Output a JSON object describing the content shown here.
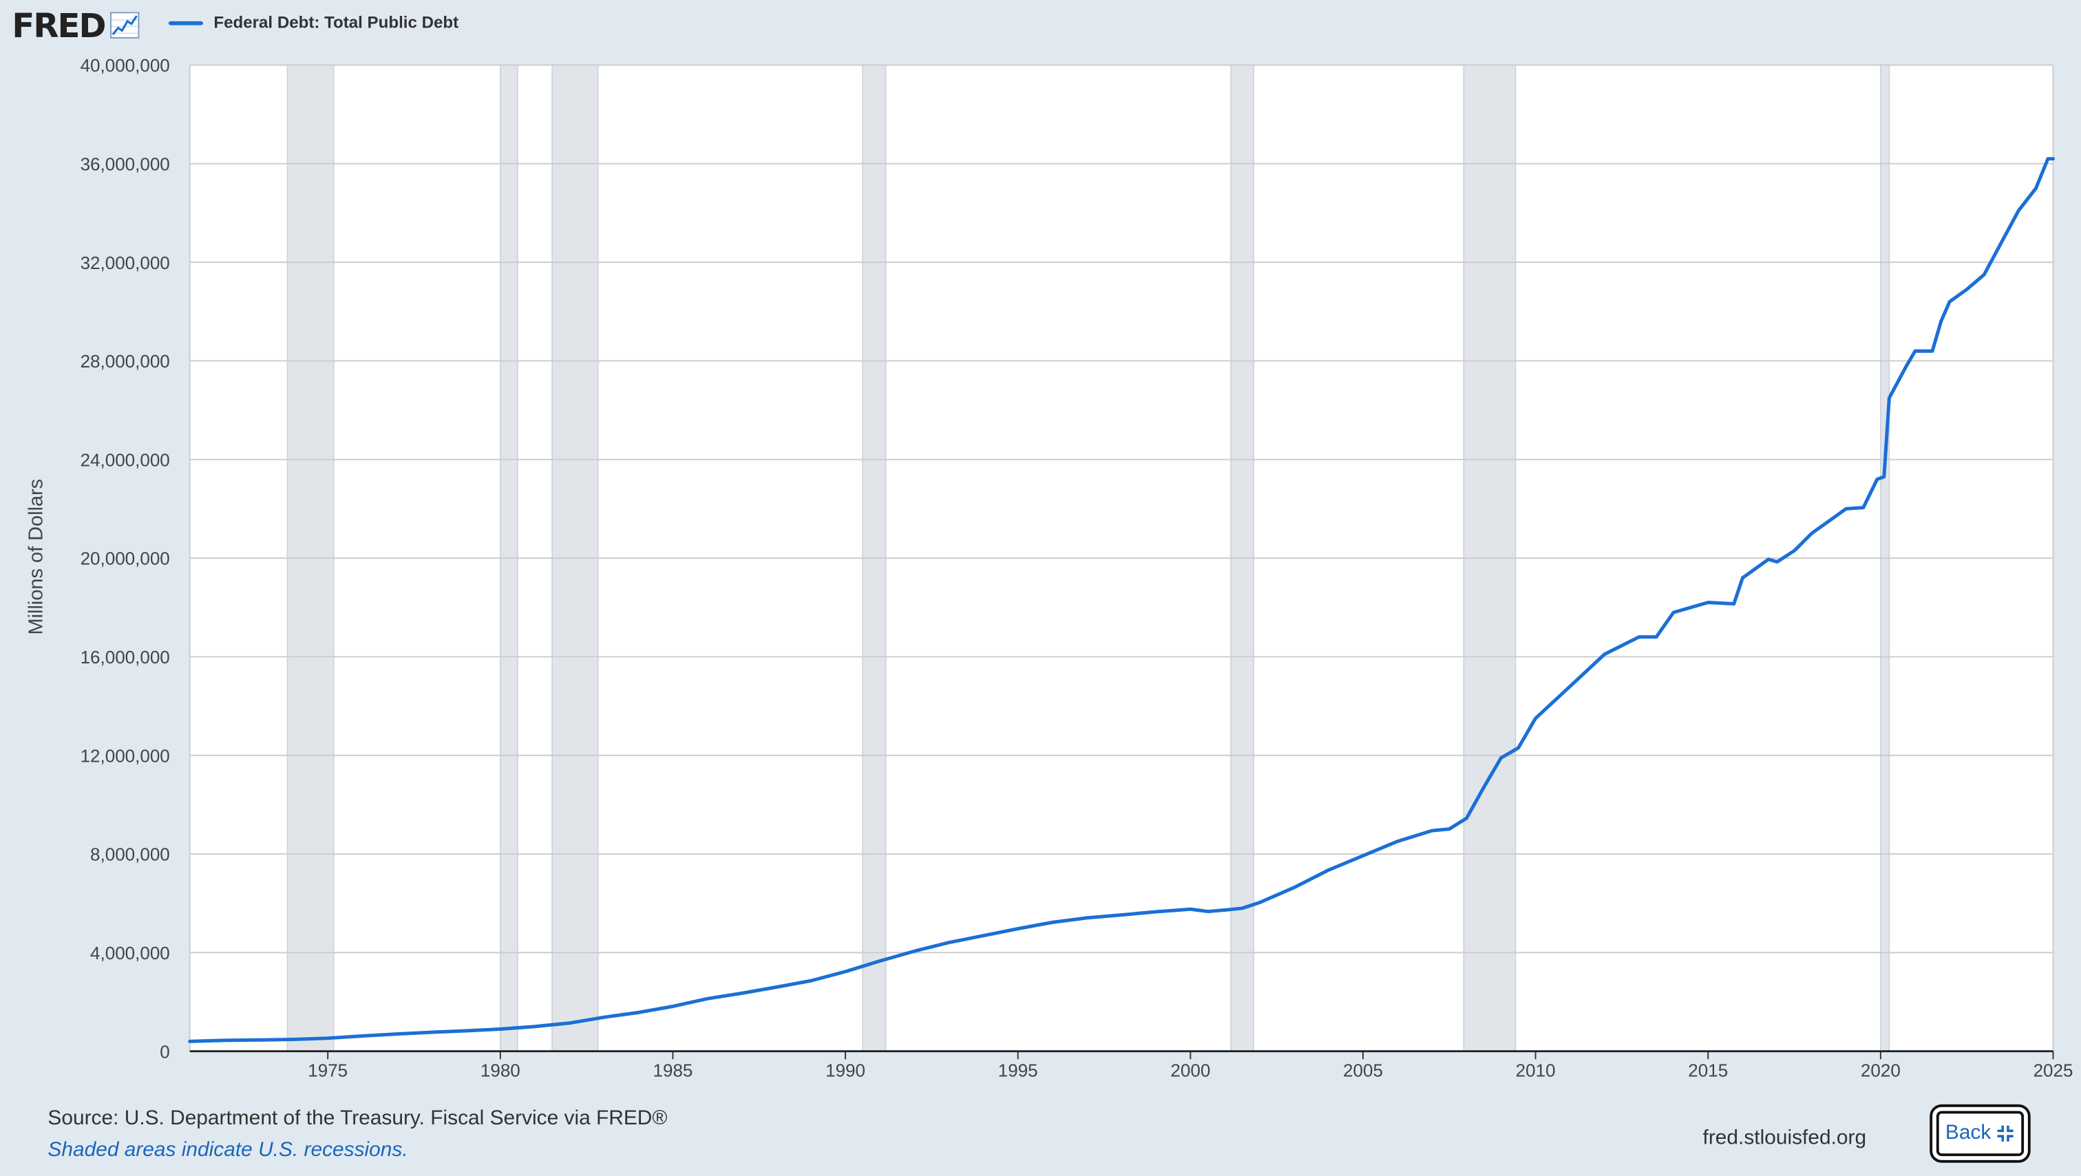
{
  "header": {
    "logo_text": "FRED",
    "logo_icon": "line-chart-icon"
  },
  "footer": {
    "source": "Source: U.S. Department of the Treasury. Fiscal Service via FRED®",
    "note": "Shaded areas indicate U.S. recessions.",
    "site": "fred.stlouisfed.org",
    "back_label": "Back",
    "back_icon": "collapse-arrows-icon"
  },
  "colors": {
    "background": "#e1e9f0",
    "plot_background": "#ffffff",
    "series_line": "#1b6fd5",
    "recession_shade": "#e1e5ea",
    "gridline": "#cccccc"
  },
  "chart_data": {
    "type": "line",
    "title": "",
    "xlabel": "",
    "ylabel": "Millions of Dollars",
    "legend_position": "top-left",
    "grid": true,
    "xlim": [
      1971.0,
      2025.0
    ],
    "ylim": [
      0,
      40000000
    ],
    "x_ticks": [
      1975,
      1980,
      1985,
      1990,
      1995,
      2000,
      2005,
      2010,
      2015,
      2020,
      2025
    ],
    "y_ticks": [
      0,
      4000000,
      8000000,
      12000000,
      16000000,
      20000000,
      24000000,
      28000000,
      32000000,
      36000000,
      40000000
    ],
    "y_tick_labels": [
      "0",
      "4,000,000",
      "8,000,000",
      "12,000,000",
      "16,000,000",
      "20,000,000",
      "24,000,000",
      "28,000,000",
      "32,000,000",
      "36,000,000",
      "40,000,000"
    ],
    "recessions": [
      [
        1973.83,
        1975.17
      ],
      [
        1980.0,
        1980.5
      ],
      [
        1981.5,
        1982.83
      ],
      [
        1990.5,
        1991.17
      ],
      [
        2001.17,
        2001.83
      ],
      [
        2007.92,
        2009.42
      ],
      [
        2020.0,
        2020.25
      ]
    ],
    "series": [
      {
        "name": "Federal Debt: Total Public Debt",
        "x": [
          1971.0,
          1972.0,
          1973.0,
          1974.0,
          1975.0,
          1976.0,
          1977.0,
          1978.0,
          1979.0,
          1980.0,
          1981.0,
          1982.0,
          1983.0,
          1984.0,
          1985.0,
          1986.0,
          1987.0,
          1988.0,
          1989.0,
          1990.0,
          1991.0,
          1992.0,
          1993.0,
          1994.0,
          1995.0,
          1996.0,
          1997.0,
          1998.0,
          1999.0,
          2000.0,
          2000.5,
          2001.0,
          2001.5,
          2002.0,
          2003.0,
          2004.0,
          2005.0,
          2006.0,
          2007.0,
          2007.5,
          2008.0,
          2008.5,
          2009.0,
          2009.5,
          2010.0,
          2011.0,
          2012.0,
          2013.0,
          2013.5,
          2014.0,
          2015.0,
          2015.75,
          2016.0,
          2016.75,
          2017.0,
          2017.5,
          2018.0,
          2019.0,
          2019.5,
          2019.9,
          2020.1,
          2020.25,
          2020.75,
          2021.0,
          2021.5,
          2021.75,
          2022.0,
          2022.5,
          2023.0,
          2023.5,
          2024.0,
          2024.5,
          2024.85,
          2025.0
        ],
        "values": [
          400000,
          440000,
          460000,
          480000,
          530000,
          620000,
          700000,
          770000,
          830000,
          900000,
          1000000,
          1140000,
          1380000,
          1570000,
          1820000,
          2130000,
          2350000,
          2600000,
          2860000,
          3230000,
          3660000,
          4060000,
          4410000,
          4690000,
          4970000,
          5230000,
          5410000,
          5530000,
          5660000,
          5760000,
          5670000,
          5730000,
          5800000,
          6030000,
          6640000,
          7350000,
          7930000,
          8510000,
          8950000,
          9010000,
          9450000,
          10700000,
          11900000,
          12300000,
          13500000,
          14800000,
          16100000,
          16800000,
          16800000,
          17800000,
          18200000,
          18150000,
          19200000,
          19950000,
          19850000,
          20300000,
          21000000,
          22000000,
          22050000,
          23200000,
          23300000,
          26500000,
          27800000,
          28400000,
          28400000,
          29600000,
          30400000,
          30900000,
          31500000,
          32800000,
          34100000,
          35000000,
          36200000,
          36200000
        ]
      }
    ]
  }
}
